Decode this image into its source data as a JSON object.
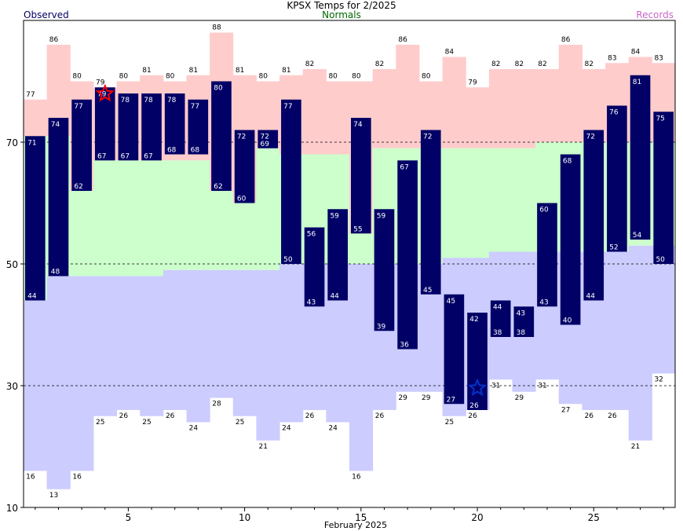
{
  "header": {
    "title": "KPSX Temps for 2/2025",
    "observed_label": "Observed",
    "normals_label": "Normals",
    "records_label": "Records"
  },
  "colors": {
    "observed": "#000066",
    "record_high_band": "#ffcccc",
    "normal_band": "#ccffcc",
    "record_low_band": "#ccccff",
    "record_high_star": "#ff0000",
    "record_low_star": "#0033cc"
  },
  "chart_data": {
    "type": "bar",
    "xlabel": "February 2025",
    "x_ticks": [
      5,
      10,
      15,
      20,
      25
    ],
    "y_ticks": [
      10,
      30,
      50,
      70
    ],
    "ylim": [
      10,
      90
    ],
    "xlim": [
      0.5,
      28.5
    ],
    "grid_lines": [
      30,
      50,
      70
    ],
    "days": [
      1,
      2,
      3,
      4,
      5,
      6,
      7,
      8,
      9,
      10,
      11,
      12,
      13,
      14,
      15,
      16,
      17,
      18,
      19,
      20,
      21,
      22,
      23,
      24,
      25,
      26,
      27,
      28
    ],
    "observed_high": [
      71,
      74,
      77,
      79,
      78,
      78,
      78,
      77,
      80,
      72,
      72,
      77,
      56,
      59,
      74,
      59,
      67,
      72,
      45,
      42,
      44,
      43,
      60,
      68,
      72,
      76,
      81,
      75
    ],
    "observed_low": [
      44,
      48,
      62,
      67,
      67,
      67,
      68,
      68,
      62,
      60,
      69,
      50,
      43,
      44,
      55,
      39,
      36,
      45,
      27,
      26,
      38,
      38,
      43,
      40,
      44,
      52,
      54,
      50
    ],
    "record_high": [
      77,
      86,
      80,
      79,
      80,
      81,
      80,
      81,
      88,
      81,
      80,
      81,
      82,
      80,
      80,
      82,
      86,
      80,
      84,
      79,
      82,
      82,
      82,
      86,
      82,
      83,
      84,
      83
    ],
    "record_low": [
      16,
      13,
      16,
      25,
      26,
      25,
      26,
      24,
      28,
      25,
      21,
      24,
      26,
      24,
      16,
      26,
      29,
      29,
      25,
      26,
      31,
      29,
      31,
      27,
      26,
      26,
      21,
      32
    ],
    "normal_high": [
      68,
      68,
      68,
      68,
      68,
      68,
      68,
      68,
      68,
      68,
      68,
      68,
      68,
      68,
      68,
      68,
      69,
      69,
      69,
      69,
      69,
      69,
      70,
      70,
      70,
      70,
      70,
      70
    ],
    "normal_low": [
      44,
      48,
      48,
      48,
      48,
      48,
      49,
      49,
      49,
      49,
      49,
      50,
      50,
      50,
      50,
      50,
      50,
      50,
      51,
      51,
      52,
      52,
      52,
      52,
      52,
      52,
      53,
      53
    ],
    "record_high_band_top": [
      77,
      86,
      80,
      79,
      80,
      81,
      80,
      81,
      88,
      81,
      80,
      81,
      82,
      80,
      80,
      82,
      86,
      80,
      84,
      79,
      82,
      82,
      82,
      86,
      82,
      83,
      84,
      83
    ],
    "normal_band_top": [
      71,
      71,
      62,
      67,
      67,
      67,
      67,
      67,
      62,
      60,
      69,
      68,
      68,
      68,
      55,
      69,
      69,
      69,
      69,
      69,
      69,
      69,
      70,
      70,
      70,
      70,
      70,
      70
    ],
    "normal_band_bottom": [
      44,
      48,
      48,
      48,
      48,
      48,
      49,
      49,
      49,
      49,
      49,
      50,
      50,
      50,
      50,
      50,
      50,
      50,
      51,
      51,
      52,
      52,
      52,
      52,
      52,
      52,
      53,
      53
    ],
    "record_low_band_bottom": [
      16,
      13,
      16,
      25,
      26,
      25,
      26,
      24,
      28,
      25,
      21,
      24,
      26,
      24,
      16,
      26,
      29,
      29,
      25,
      26,
      31,
      29,
      31,
      27,
      26,
      26,
      21,
      32
    ],
    "record_high_day": 4,
    "record_high_value": 79,
    "record_low_day": 20,
    "record_low_value": 26
  }
}
